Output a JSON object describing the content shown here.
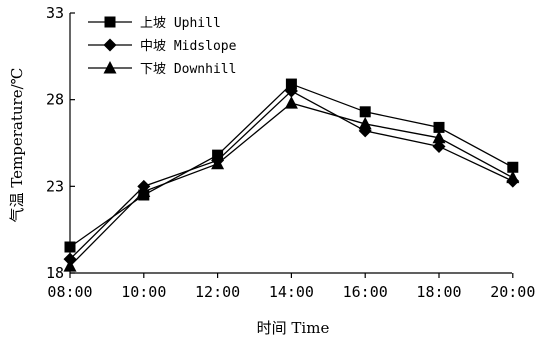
{
  "chart_data": {
    "type": "line",
    "categories": [
      "08:00",
      "10:00",
      "12:00",
      "14:00",
      "16:00",
      "18:00",
      "20:00"
    ],
    "series": [
      {
        "name": "上坡 Uphill",
        "marker": "square",
        "values": [
          19.5,
          22.5,
          24.8,
          28.9,
          27.3,
          26.4,
          24.1
        ]
      },
      {
        "name": "中坡 Midslope",
        "marker": "diamond",
        "values": [
          18.8,
          23.0,
          24.5,
          28.5,
          26.2,
          25.3,
          23.3
        ]
      },
      {
        "name": "下坡 Downhill",
        "marker": "triangle",
        "values": [
          18.4,
          22.7,
          24.3,
          27.8,
          26.6,
          25.8,
          23.5
        ]
      }
    ],
    "xlabel": "时间 Time",
    "ylabel": "气温 Temperature/℃",
    "ylim": [
      18,
      33
    ],
    "yticks": [
      18,
      23,
      28,
      33
    ],
    "grid": false,
    "legend_position": "top-left",
    "line_color": "#000000"
  }
}
